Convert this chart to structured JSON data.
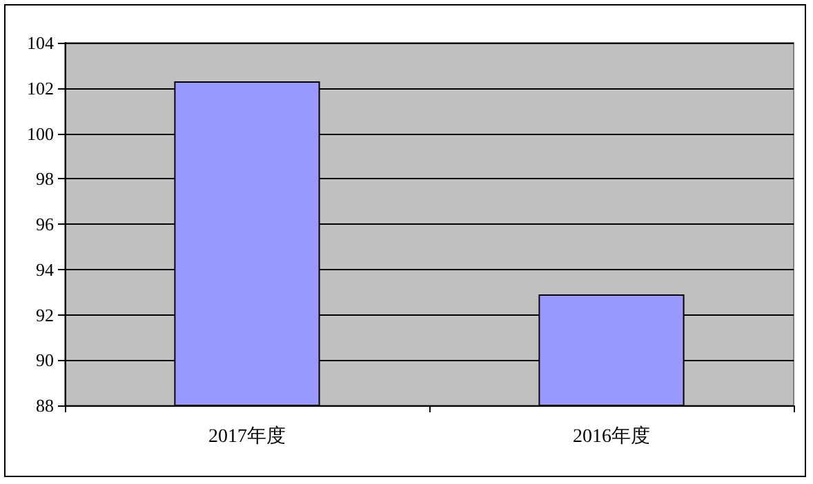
{
  "chart_data": {
    "type": "bar",
    "categories": [
      "2017年度",
      "2016年度"
    ],
    "values": [
      102.3,
      92.9
    ],
    "color": "#9999ff",
    "ylim": [
      88,
      104
    ],
    "yticks": [
      88,
      90,
      92,
      94,
      96,
      98,
      100,
      102,
      104
    ],
    "grid": "y"
  }
}
